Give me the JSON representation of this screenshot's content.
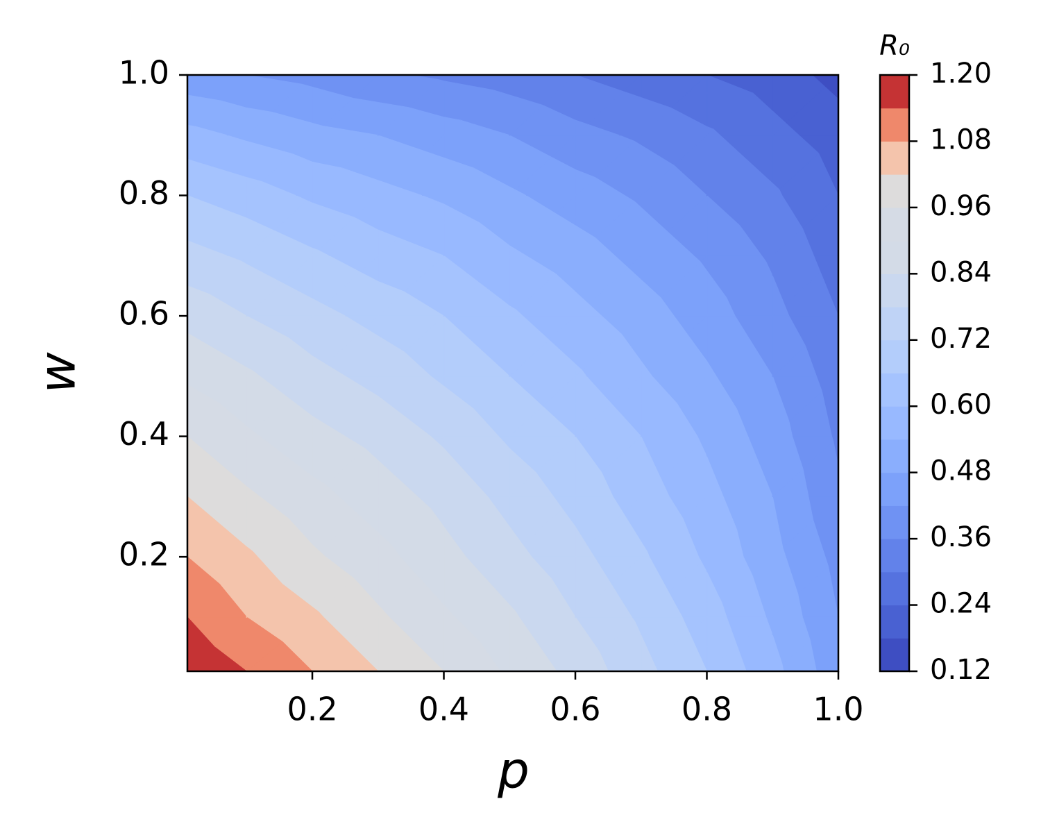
{
  "chart_data": {
    "type": "contour",
    "xlabel": "p",
    "ylabel": "w",
    "colorbar_label": "R₀",
    "x": [
      0.01,
      0.1,
      0.2,
      0.3,
      0.4,
      0.5,
      0.6,
      0.7,
      0.8,
      0.9,
      1.0
    ],
    "y": [
      0.01,
      0.1,
      0.2,
      0.3,
      0.4,
      0.5,
      0.6,
      0.7,
      0.8,
      0.9,
      1.0
    ],
    "z": [
      [
        1.19,
        1.14,
        1.08,
        1.02,
        0.96,
        0.89,
        0.82,
        0.74,
        0.66,
        0.56,
        0.44
      ],
      [
        1.14,
        1.08,
        1.03,
        0.97,
        0.91,
        0.85,
        0.78,
        0.71,
        0.63,
        0.53,
        0.42
      ],
      [
        1.08,
        1.03,
        0.97,
        0.92,
        0.86,
        0.8,
        0.74,
        0.67,
        0.59,
        0.5,
        0.4
      ],
      [
        1.02,
        0.97,
        0.92,
        0.87,
        0.82,
        0.76,
        0.7,
        0.63,
        0.56,
        0.48,
        0.37
      ],
      [
        0.96,
        0.91,
        0.86,
        0.82,
        0.77,
        0.71,
        0.66,
        0.6,
        0.53,
        0.45,
        0.35
      ],
      [
        0.89,
        0.85,
        0.8,
        0.76,
        0.71,
        0.66,
        0.61,
        0.55,
        0.49,
        0.42,
        0.33
      ],
      [
        0.82,
        0.78,
        0.74,
        0.7,
        0.66,
        0.61,
        0.56,
        0.51,
        0.45,
        0.38,
        0.3
      ],
      [
        0.74,
        0.71,
        0.67,
        0.63,
        0.6,
        0.55,
        0.51,
        0.46,
        0.41,
        0.35,
        0.27
      ],
      [
        0.66,
        0.63,
        0.59,
        0.56,
        0.53,
        0.49,
        0.45,
        0.41,
        0.36,
        0.31,
        0.24
      ],
      [
        0.56,
        0.53,
        0.5,
        0.48,
        0.45,
        0.42,
        0.38,
        0.35,
        0.31,
        0.26,
        0.21
      ],
      [
        0.44,
        0.42,
        0.4,
        0.37,
        0.35,
        0.33,
        0.3,
        0.27,
        0.24,
        0.21,
        0.16
      ]
    ],
    "levels": [
      0.12,
      0.18,
      0.24,
      0.3,
      0.36,
      0.42,
      0.48,
      0.54,
      0.6,
      0.66,
      0.72,
      0.78,
      0.84,
      0.9,
      0.96,
      1.02,
      1.08,
      1.14,
      1.2
    ],
    "colors": [
      "#3e4ec2",
      "#4961d2",
      "#5572df",
      "#6282ea",
      "#6f92f3",
      "#7ca1fa",
      "#8aaefd",
      "#98b9ff",
      "#a5c3fe",
      "#b3cdfb",
      "#bfd3f6",
      "#cad8ef",
      "#d3dbe7",
      "#d5dbe5",
      "#dddcdc",
      "#f4c4ac",
      "#ef886b",
      "#c53334"
    ],
    "xlim": [
      0.01,
      1.0
    ],
    "ylim": [
      0.01,
      1.0
    ],
    "xticks": [
      0.2,
      0.4,
      0.6,
      0.8,
      {
        "value": 1.0,
        "label": "1.0"
      }
    ],
    "yticks": [
      0.2,
      0.4,
      0.6,
      0.8,
      {
        "value": 1.0,
        "label": "1.0"
      }
    ],
    "colorbar_ticks": [
      0.12,
      0.24,
      0.36,
      0.48,
      {
        "value": 0.6,
        "label": "0.60"
      },
      0.72,
      0.84,
      0.96,
      1.08,
      {
        "value": 1.2,
        "label": "1.20"
      }
    ]
  }
}
